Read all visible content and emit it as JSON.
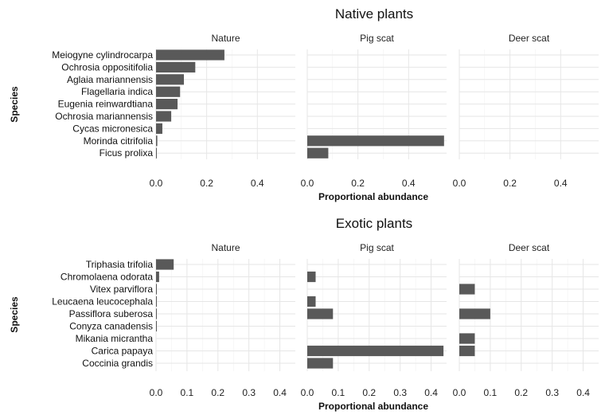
{
  "colors": {
    "bar": "#595959",
    "grid": "#e6e6e6",
    "text": "#222222"
  },
  "chart_data": [
    {
      "type": "bar",
      "orientation": "horizontal",
      "title": "Native plants",
      "xlabel": "Proportional abundance",
      "ylabel": "Species",
      "facets": [
        "Nature",
        "Pig scat",
        "Deer scat"
      ],
      "xlim": [
        0,
        0.55
      ],
      "x_ticks": [
        "0.0",
        "0.2",
        "0.4"
      ],
      "x_tick_values": [
        0,
        0.2,
        0.4
      ],
      "categories": [
        "Meiogyne cylindrocarpa",
        "Ochrosia oppositifolia",
        "Aglaia mariannensis",
        "Flagellaria indica",
        "Eugenia reinwardtiana",
        "Ochrosia mariannensis",
        "Cycas micronesica",
        "Morinda citrifolia",
        "Ficus prolixa"
      ],
      "series": [
        {
          "name": "Nature",
          "values": [
            0.27,
            0.155,
            0.11,
            0.095,
            0.085,
            0.06,
            0.025,
            0.005,
            0.003
          ]
        },
        {
          "name": "Pig scat",
          "values": [
            0,
            0,
            0,
            0,
            0,
            0,
            0,
            0.54,
            0.083
          ]
        },
        {
          "name": "Deer scat",
          "values": [
            0,
            0,
            0,
            0,
            0,
            0,
            0,
            0,
            0
          ]
        }
      ],
      "grid": true
    },
    {
      "type": "bar",
      "orientation": "horizontal",
      "title": "Exotic plants",
      "xlabel": "Proportional abundance",
      "ylabel": "Species",
      "facets": [
        "Nature",
        "Pig scat",
        "Deer scat"
      ],
      "xlim": [
        0,
        0.45
      ],
      "x_ticks": [
        "0.0",
        "0.1",
        "0.2",
        "0.3",
        "0.4"
      ],
      "x_tick_values": [
        0,
        0.1,
        0.2,
        0.3,
        0.4
      ],
      "categories": [
        "Triphasia trifolia",
        "Chromolaena odorata",
        "Vitex parviflora",
        "Leucaena leucocephala",
        "Passiflora suberosa",
        "Conyza canadensis",
        "Mikania micrantha",
        "Carica papaya",
        "Coccinia grandis"
      ],
      "series": [
        {
          "name": "Nature",
          "values": [
            0.057,
            0.01,
            0.002,
            0.002,
            0.001,
            0.001,
            0,
            0,
            0
          ]
        },
        {
          "name": "Pig scat",
          "values": [
            0,
            0.027,
            0,
            0.027,
            0.083,
            0,
            0,
            0.44,
            0.083
          ]
        },
        {
          "name": "Deer scat",
          "values": [
            0,
            0,
            0.05,
            0,
            0.1,
            0,
            0.05,
            0.05,
            0
          ]
        }
      ],
      "grid": true
    }
  ]
}
